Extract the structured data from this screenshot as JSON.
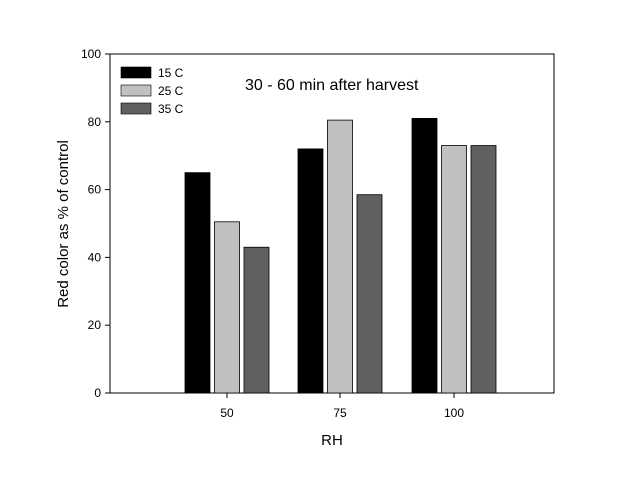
{
  "chart_data": {
    "type": "bar",
    "annotation": "30 - 60 min after harvest",
    "xlabel": "RH",
    "ylabel": "Red color as % of control",
    "categories": [
      "50",
      "75",
      "100"
    ],
    "series": [
      {
        "name": "15 C",
        "color": "#000000",
        "values": [
          65,
          72,
          81
        ]
      },
      {
        "name": "25 C",
        "color": "#c0c0c0",
        "values": [
          50.5,
          80.5,
          73
        ]
      },
      {
        "name": "35 C",
        "color": "#606060",
        "values": [
          43,
          58.5,
          73
        ]
      }
    ],
    "ylim": [
      0,
      100
    ],
    "yticks": [
      0,
      20,
      40,
      60,
      80,
      100
    ],
    "legend": "top-left",
    "grid": false
  }
}
